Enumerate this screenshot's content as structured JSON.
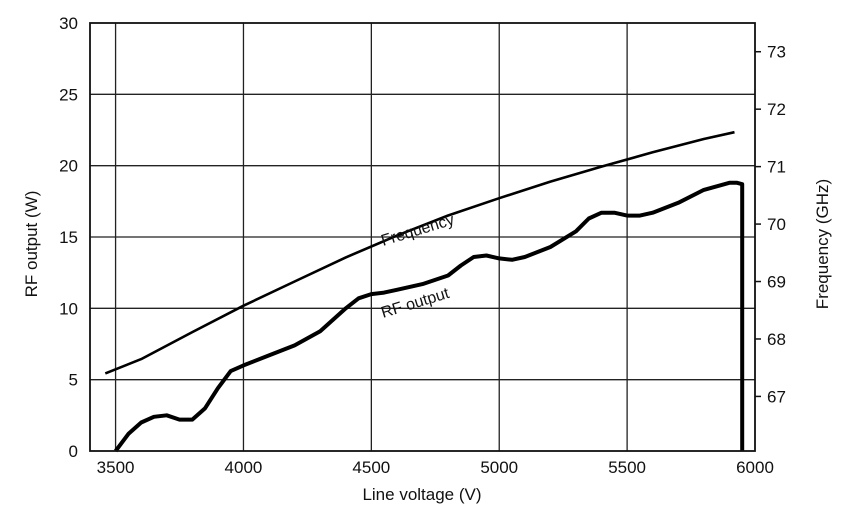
{
  "chart_data": {
    "type": "line",
    "title": "",
    "xlabel": "Line voltage (V)",
    "ylabel_left": "RF output (W)",
    "ylabel_right": "Frequency (GHz)",
    "xlim": [
      3400,
      6000
    ],
    "ylim_left": [
      0,
      30
    ],
    "ylim_right": [
      66.05,
      73.5
    ],
    "x_ticks": [
      "3500",
      "4000",
      "4500",
      "5000",
      "5500",
      "6000"
    ],
    "y_left_ticks": [
      "0",
      "5",
      "10",
      "15",
      "20",
      "25",
      "30"
    ],
    "y_right_ticks": [
      "67",
      "68",
      "69",
      "70",
      "71",
      "72",
      "73"
    ],
    "grid": true,
    "annotations": [
      {
        "text": "Frequency"
      },
      {
        "text": "RF output"
      }
    ],
    "series": [
      {
        "name": "RF output",
        "axis": "left",
        "x": [
          3500,
          3550,
          3600,
          3650,
          3700,
          3750,
          3800,
          3850,
          3900,
          3950,
          4000,
          4100,
          4200,
          4300,
          4400,
          4450,
          4500,
          4550,
          4600,
          4700,
          4800,
          4850,
          4900,
          4950,
          5000,
          5050,
          5100,
          5200,
          5300,
          5350,
          5400,
          5450,
          5500,
          5550,
          5600,
          5700,
          5800,
          5900,
          5930,
          5950,
          5950
        ],
        "y": [
          0,
          1.2,
          2.0,
          2.4,
          2.5,
          2.2,
          2.2,
          3.0,
          4.4,
          5.6,
          6.0,
          6.7,
          7.4,
          8.4,
          10.0,
          10.7,
          11.0,
          11.1,
          11.3,
          11.7,
          12.3,
          13.0,
          13.6,
          13.7,
          13.5,
          13.4,
          13.6,
          14.3,
          15.4,
          16.3,
          16.7,
          16.7,
          16.5,
          16.5,
          16.7,
          17.4,
          18.3,
          18.8,
          18.8,
          18.7,
          0
        ]
      },
      {
        "name": "Frequency",
        "axis": "right",
        "x": [
          3460,
          3600,
          3800,
          4000,
          4200,
          4400,
          4600,
          4800,
          5000,
          5200,
          5400,
          5600,
          5800,
          5920
        ],
        "y": [
          67.4,
          67.65,
          68.12,
          68.58,
          69.0,
          69.42,
          69.8,
          70.15,
          70.45,
          70.74,
          71.0,
          71.25,
          71.48,
          71.6
        ]
      }
    ]
  }
}
